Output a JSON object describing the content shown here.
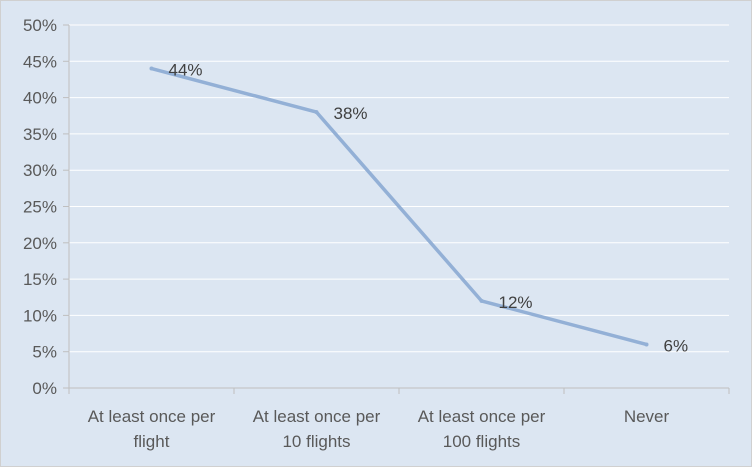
{
  "chart_data": {
    "type": "line",
    "categories": [
      [
        "At least once per",
        "flight"
      ],
      [
        "At least once per",
        "10 flights"
      ],
      [
        "At least once per",
        "100 flights"
      ],
      [
        "Never"
      ]
    ],
    "values": [
      44,
      38,
      12,
      6
    ],
    "data_labels": [
      "44%",
      "38%",
      "12%",
      "6%"
    ],
    "y_ticks": [
      "0%",
      "5%",
      "10%",
      "15%",
      "20%",
      "25%",
      "30%",
      "35%",
      "40%",
      "45%",
      "50%"
    ],
    "ylim": [
      0,
      50
    ],
    "grid": true,
    "legend": "none",
    "title": "",
    "xlabel": "",
    "ylabel": "",
    "colors": {
      "line": "#93b0d6",
      "plot_background": "#dce6f2",
      "gridline": "#ffffff",
      "axis": "#bfbfbf"
    }
  }
}
